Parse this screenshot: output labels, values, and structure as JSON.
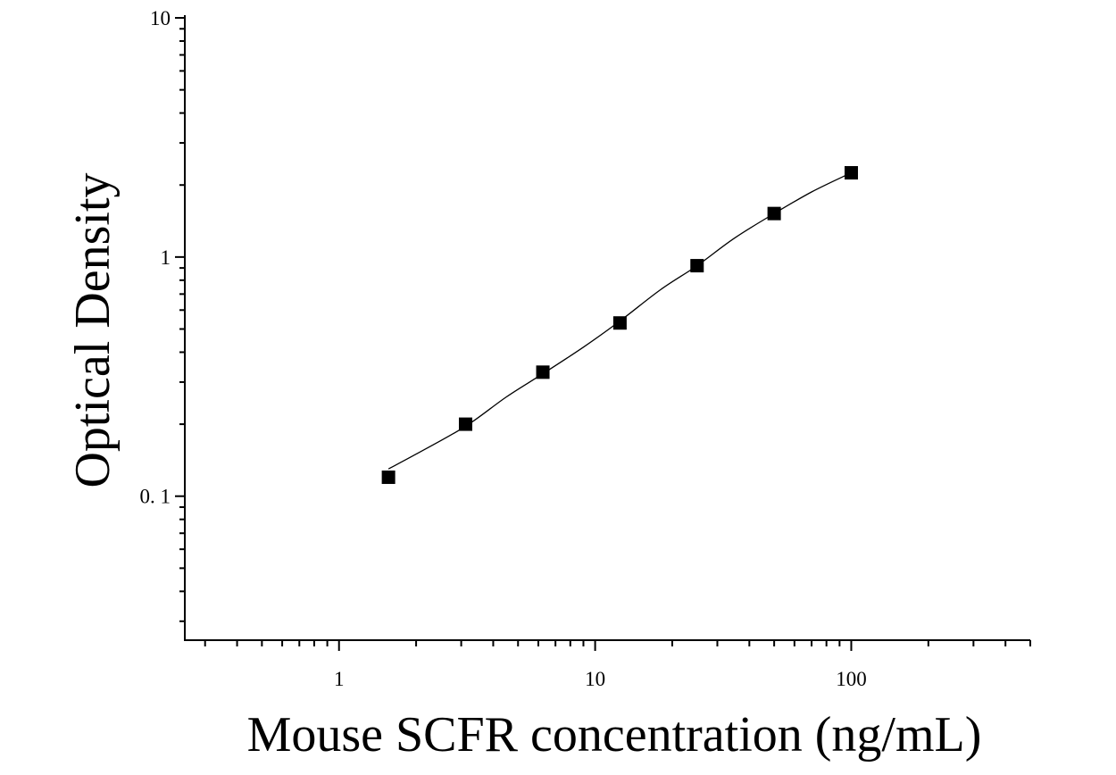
{
  "chart_data": {
    "type": "scatter",
    "xlabel": "Mouse SCFR concentration (ng/mL)",
    "ylabel": "Optical Density",
    "x_scale": "log",
    "y_scale": "log",
    "xlim": [
      0.25,
      500
    ],
    "ylim": [
      0.025,
      10
    ],
    "x_ticks": [
      {
        "value": 1,
        "label": "1"
      },
      {
        "value": 10,
        "label": "10"
      },
      {
        "value": 100,
        "label": "100"
      }
    ],
    "y_ticks": [
      {
        "value": 0.1,
        "label": "0. 1"
      },
      {
        "value": 1,
        "label": "1"
      },
      {
        "value": 10,
        "label": "10"
      }
    ],
    "grid": false,
    "legend": "none",
    "series": [
      {
        "marker": "square",
        "color": "#000000",
        "x": [
          1.56,
          3.12,
          6.25,
          12.5,
          25,
          50,
          100
        ],
        "y": [
          0.12,
          0.2,
          0.33,
          0.53,
          0.92,
          1.52,
          2.25
        ]
      }
    ],
    "fit_curve": {
      "color": "#000000",
      "x": [
        1.56,
        2,
        3.12,
        4.5,
        6.25,
        9,
        12.5,
        18,
        25,
        35,
        50,
        70,
        100
      ],
      "y": [
        0.13,
        0.15,
        0.196,
        0.26,
        0.325,
        0.42,
        0.54,
        0.73,
        0.92,
        1.2,
        1.52,
        1.87,
        2.25
      ]
    }
  }
}
